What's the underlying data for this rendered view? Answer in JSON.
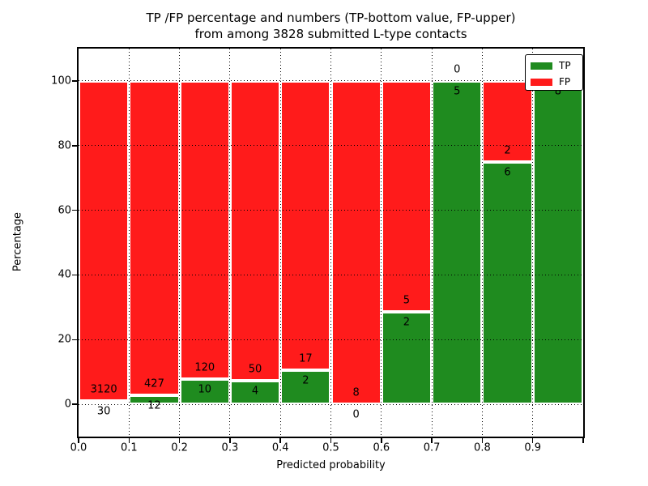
{
  "figure": {
    "title_line1": "TP /FP percentage and numbers (TP-bottom value, FP-upper)",
    "title_line2": "from among 3828 submitted L-type contacts"
  },
  "chart_data": {
    "type": "bar",
    "stacked": true,
    "percent_normalized": true,
    "title": "TP /FP percentage and numbers (TP-bottom value, FP-upper) from among 3828 submitted L-type contacts",
    "xlabel": "Predicted probability",
    "ylabel": "Percentage",
    "total_submitted_contacts": 3828,
    "xlim": [
      0.0,
      1.0
    ],
    "ylim": [
      -10,
      110
    ],
    "xticks": [
      "0.0",
      "0.1",
      "0.2",
      "0.3",
      "0.4",
      "0.5",
      "0.6",
      "0.7",
      "0.8",
      "0.9"
    ],
    "yticks": [
      0,
      20,
      40,
      60,
      80,
      100
    ],
    "grid": "dotted",
    "categories": [
      "0.0-0.1",
      "0.1-0.2",
      "0.2-0.3",
      "0.3-0.4",
      "0.4-0.5",
      "0.5-0.6",
      "0.6-0.7",
      "0.7-0.8",
      "0.8-0.9",
      "0.9-1.0"
    ],
    "bins": [
      {
        "range": "0.0-0.1",
        "tp": 30,
        "fp": 3120
      },
      {
        "range": "0.1-0.2",
        "tp": 12,
        "fp": 427
      },
      {
        "range": "0.2-0.3",
        "tp": 10,
        "fp": 120
      },
      {
        "range": "0.3-0.4",
        "tp": 4,
        "fp": 50
      },
      {
        "range": "0.4-0.5",
        "tp": 2,
        "fp": 17
      },
      {
        "range": "0.5-0.6",
        "tp": 0,
        "fp": 8
      },
      {
        "range": "0.6-0.7",
        "tp": 2,
        "fp": 5
      },
      {
        "range": "0.7-0.8",
        "tp": 5,
        "fp": 0
      },
      {
        "range": "0.8-0.9",
        "tp": 6,
        "fp": 2
      },
      {
        "range": "0.9-1.0",
        "tp": 8,
        "fp": 0
      }
    ],
    "series": [
      {
        "name": "TP",
        "color": "#1f8b1f",
        "counts": [
          30,
          12,
          10,
          4,
          2,
          0,
          2,
          5,
          6,
          8
        ],
        "pct": [
          0.95,
          2.73,
          7.69,
          7.41,
          10.53,
          0.0,
          28.57,
          100.0,
          75.0,
          100.0
        ]
      },
      {
        "name": "FP",
        "color": "#ff1b1b",
        "counts": [
          3120,
          427,
          120,
          50,
          17,
          8,
          5,
          0,
          2,
          0
        ],
        "pct": [
          99.05,
          97.27,
          92.31,
          92.59,
          89.47,
          100.0,
          71.43,
          0.0,
          25.0,
          0.0
        ]
      }
    ],
    "legend": {
      "position": "upper right",
      "entries": [
        {
          "label": "TP",
          "color": "#1f8b1f"
        },
        {
          "label": "FP",
          "color": "#ff1b1b"
        }
      ]
    }
  }
}
